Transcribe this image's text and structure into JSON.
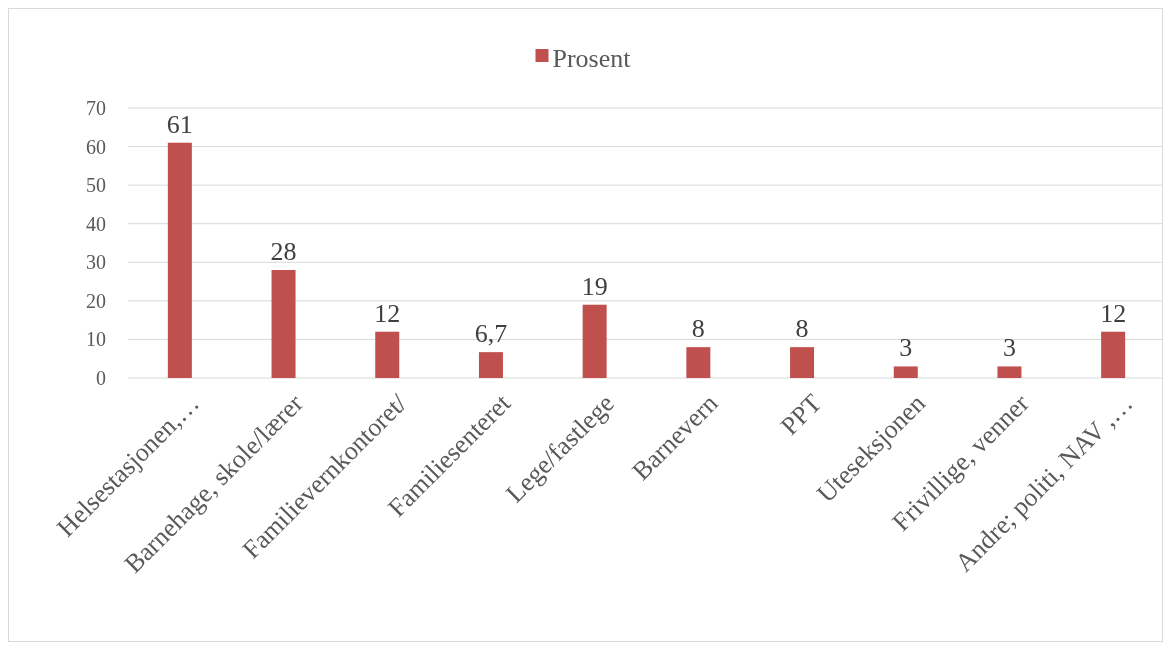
{
  "chart_data": {
    "type": "bar",
    "categories": [
      "Helsestasjonen,…",
      "Barnehage, skole/lærer",
      "Familievernkontoret/",
      "Familiesenteret",
      "Lege/fastlege",
      "Barnevern",
      "PPT",
      "Uteseksjonen",
      "Frivillige, venner",
      "Andre; politi, NAV ,…"
    ],
    "series": [
      {
        "name": "Prosent",
        "color": "#c0504d",
        "values": [
          61,
          28,
          12,
          6.7,
          19,
          8,
          8,
          3,
          3,
          12
        ],
        "value_labels": [
          "61",
          "28",
          "12",
          "6,7",
          "19",
          "8",
          "8",
          "3",
          "3",
          "12"
        ]
      }
    ],
    "ylim": [
      0,
      70
    ],
    "yticks": [
      0,
      10,
      20,
      30,
      40,
      50,
      60,
      70
    ],
    "grid": "y",
    "legend": "top"
  }
}
